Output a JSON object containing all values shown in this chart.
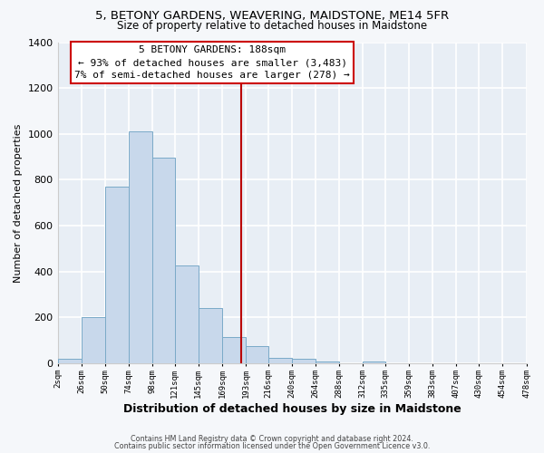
{
  "title": "5, BETONY GARDENS, WEAVERING, MAIDSTONE, ME14 5FR",
  "subtitle": "Size of property relative to detached houses in Maidstone",
  "xlabel": "Distribution of detached houses by size in Maidstone",
  "ylabel": "Number of detached properties",
  "bar_color": "#c8d8eb",
  "bar_edge_color": "#7aaac8",
  "plot_bg_color": "#e8eef5",
  "fig_bg_color": "#f5f7fa",
  "grid_color": "#ffffff",
  "vline_x": 188,
  "vline_color": "#bb0000",
  "bin_edges": [
    2,
    26,
    50,
    74,
    98,
    121,
    145,
    169,
    193,
    216,
    240,
    264,
    288,
    312,
    335,
    359,
    383,
    407,
    430,
    454,
    478
  ],
  "bin_heights": [
    20,
    200,
    770,
    1010,
    895,
    425,
    240,
    115,
    75,
    25,
    20,
    10,
    0,
    10,
    0,
    0,
    0,
    0,
    0,
    0
  ],
  "xtick_labels": [
    "2sqm",
    "26sqm",
    "50sqm",
    "74sqm",
    "98sqm",
    "121sqm",
    "145sqm",
    "169sqm",
    "193sqm",
    "216sqm",
    "240sqm",
    "264sqm",
    "288sqm",
    "312sqm",
    "335sqm",
    "359sqm",
    "383sqm",
    "407sqm",
    "430sqm",
    "454sqm",
    "478sqm"
  ],
  "ylim": [
    0,
    1400
  ],
  "yticks": [
    0,
    200,
    400,
    600,
    800,
    1000,
    1200,
    1400
  ],
  "annotation_title": "5 BETONY GARDENS: 188sqm",
  "annotation_line1": "← 93% of detached houses are smaller (3,483)",
  "annotation_line2": "7% of semi-detached houses are larger (278) →",
  "footer_line1": "Contains HM Land Registry data © Crown copyright and database right 2024.",
  "footer_line2": "Contains public sector information licensed under the Open Government Licence v3.0."
}
